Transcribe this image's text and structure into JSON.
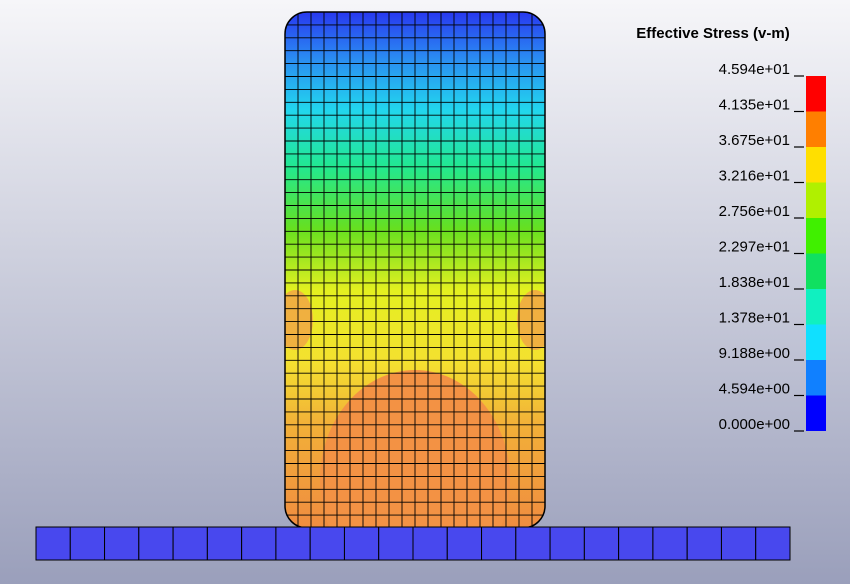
{
  "legend": {
    "title": "Effective Stress (v-m)",
    "labels": [
      "4.594e+01",
      "4.135e+01",
      "3.675e+01",
      "3.216e+01",
      "2.756e+01",
      "2.297e+01",
      "1.838e+01",
      "1.378e+01",
      "9.188e+00",
      "4.594e+00",
      "0.000e+00"
    ]
  }
}
